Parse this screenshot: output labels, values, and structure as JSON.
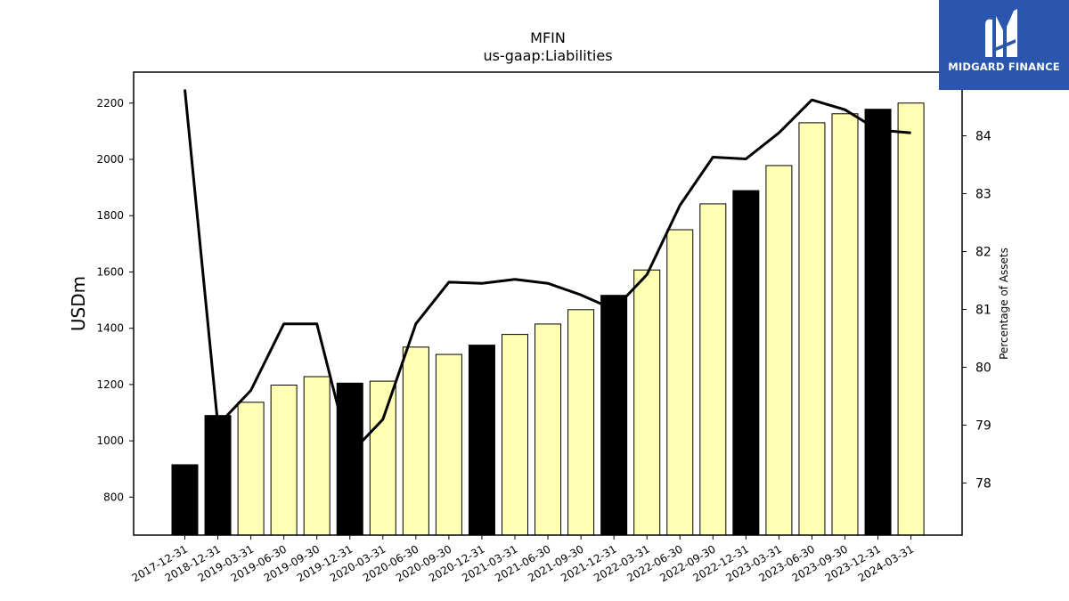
{
  "logo": {
    "text": "MIDGARD FINANCE",
    "icon": "midgard-m-logo-icon",
    "background": "#2a56ad"
  },
  "chart_data": {
    "type": "bar",
    "title": "MFIN",
    "subtitle": "us-gaap:Liabilities",
    "ylabel": "USDm",
    "y2label": "Percentage of Assets",
    "ylim": [
      665,
      2310
    ],
    "y2lim": [
      77.1,
      85.1
    ],
    "yticks": [
      800,
      1000,
      1200,
      1400,
      1600,
      1800,
      2000,
      2200
    ],
    "y2ticks": [
      78,
      79,
      80,
      81,
      82,
      83,
      84
    ],
    "categories": [
      "2017-12-31",
      "2018-12-31",
      "2019-03-31",
      "2019-06-30",
      "2019-09-30",
      "2019-12-31",
      "2020-03-31",
      "2020-06-30",
      "2020-09-30",
      "2020-12-31",
      "2021-03-31",
      "2021-06-30",
      "2021-09-30",
      "2021-12-31",
      "2022-03-31",
      "2022-06-30",
      "2022-09-30",
      "2022-12-31",
      "2023-03-31",
      "2023-06-30",
      "2023-09-30",
      "2023-12-31",
      "2024-03-31"
    ],
    "values": [
      915,
      1090,
      1137,
      1198,
      1228,
      1205,
      1212,
      1333,
      1307,
      1340,
      1378,
      1415,
      1466,
      1517,
      1607,
      1750,
      1842,
      1889,
      1978,
      2130,
      2162,
      2178,
      2200
    ],
    "annual": [
      true,
      true,
      false,
      false,
      false,
      true,
      false,
      false,
      false,
      true,
      false,
      false,
      false,
      true,
      false,
      false,
      false,
      true,
      false,
      false,
      false,
      true,
      false
    ],
    "bar_colors": {
      "annual": "#000000",
      "quarterly": "#ffffb3"
    },
    "line": {
      "name": "Percentage of Assets",
      "values": [
        84.8,
        79.0,
        79.6,
        80.75,
        80.75,
        78.5,
        79.1,
        80.75,
        81.47,
        81.45,
        81.52,
        81.45,
        81.25,
        81.0,
        81.6,
        82.8,
        83.63,
        83.6,
        84.05,
        84.62,
        84.45,
        84.1,
        84.05
      ],
      "color": "#000000"
    },
    "grid": false,
    "legend": "none"
  }
}
